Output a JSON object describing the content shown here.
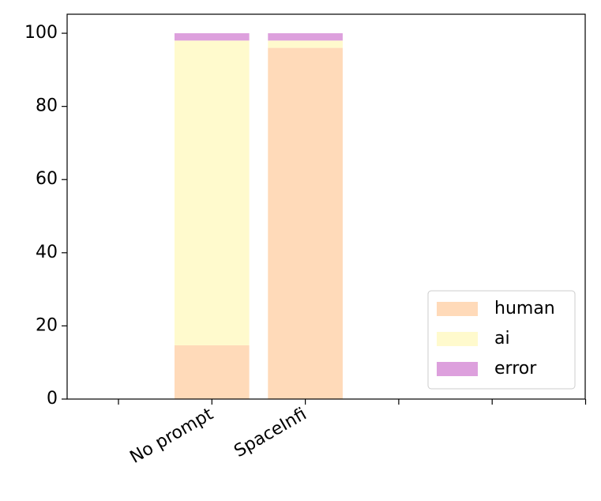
{
  "chart_data": {
    "type": "stacked_bar",
    "categories": [
      null,
      "No prompt",
      "SpaceInfi",
      null,
      null,
      null
    ],
    "series": [
      {
        "name": "human",
        "color": "#ffdab9",
        "values": [
          null,
          14.7,
          96,
          null,
          null,
          null
        ]
      },
      {
        "name": "ai",
        "color": "#fffacd",
        "values": [
          null,
          83.3,
          2,
          null,
          null,
          null
        ]
      },
      {
        "name": "error",
        "color": "#dda0dd",
        "values": [
          null,
          2,
          2,
          null,
          null,
          null
        ]
      }
    ],
    "ylim": [
      0,
      105.2
    ],
    "yticks": [
      0,
      20,
      40,
      60,
      80,
      100
    ],
    "legend": "lower right"
  }
}
